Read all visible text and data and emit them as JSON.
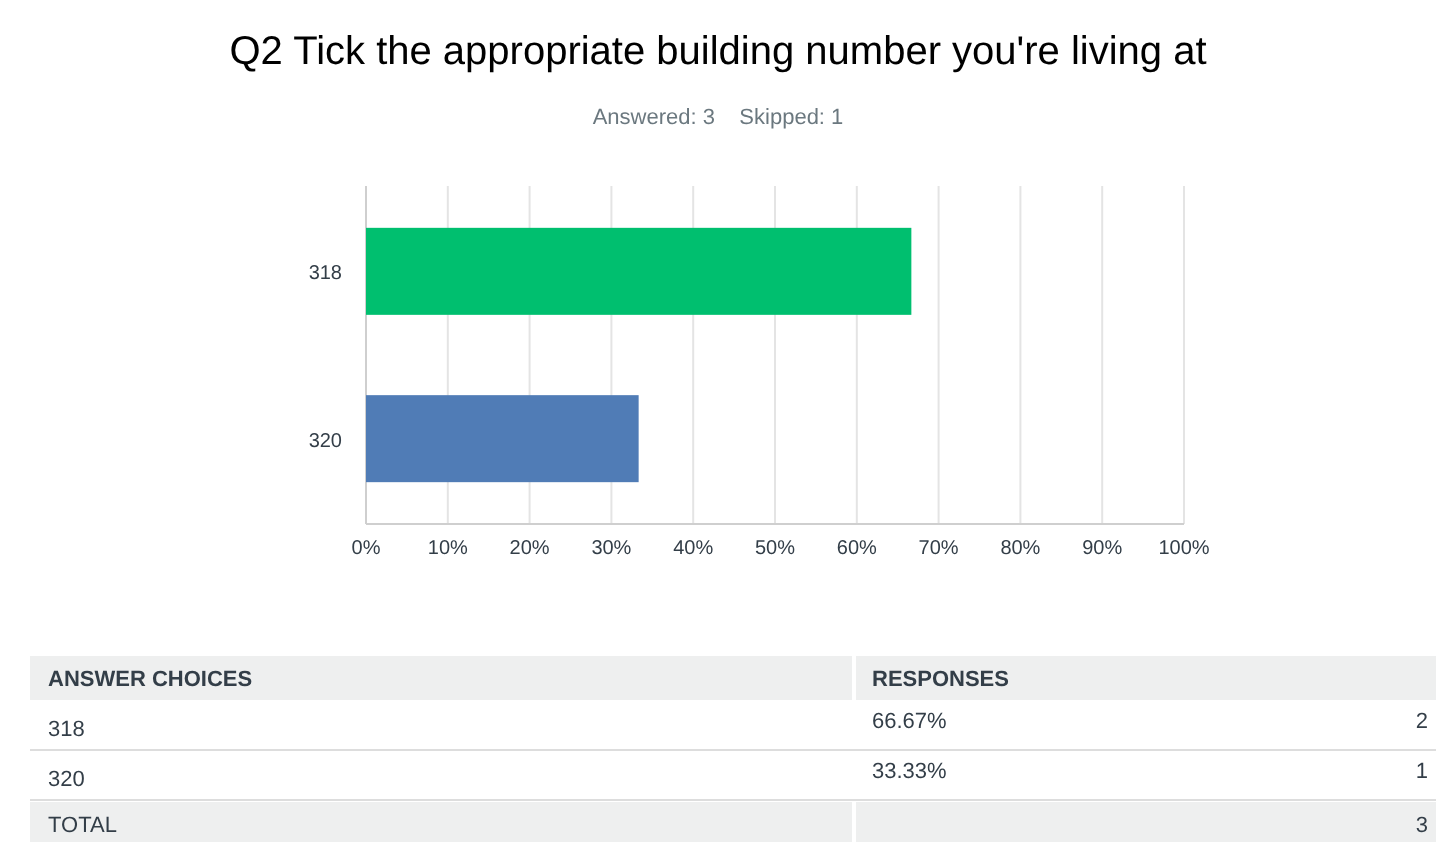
{
  "chart_data": {
    "type": "bar",
    "orientation": "horizontal",
    "title": "Q2 Tick the appropriate building number you're living at",
    "subtitle": "Answered: 3    Skipped: 1",
    "categories": [
      "318",
      "320"
    ],
    "values": [
      66.67,
      33.33
    ],
    "colors": [
      "#00bf6f",
      "#507cb6"
    ],
    "xlim": [
      0,
      100
    ],
    "xticks": [
      {
        "value": 0,
        "label": "0%"
      },
      {
        "value": 10,
        "label": "10%"
      },
      {
        "value": 20,
        "label": "20%"
      },
      {
        "value": 30,
        "label": "30%"
      },
      {
        "value": 40,
        "label": "40%"
      },
      {
        "value": 50,
        "label": "50%"
      },
      {
        "value": 60,
        "label": "60%"
      },
      {
        "value": 70,
        "label": "70%"
      },
      {
        "value": 80,
        "label": "80%"
      },
      {
        "value": 90,
        "label": "90%"
      },
      {
        "value": 100,
        "label": "100%"
      }
    ],
    "grid": "x",
    "annotations": [
      "ANSWER CHOICES",
      "RESPONSES",
      "66.67%",
      "2",
      "33.33%",
      "1",
      "TOTAL",
      "3"
    ]
  }
}
